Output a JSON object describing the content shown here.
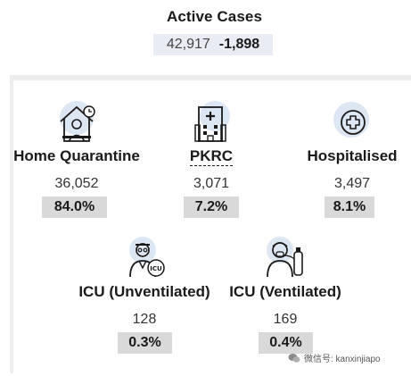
{
  "header": {
    "title": "Active Cases",
    "total": "42,917",
    "change": "-1,898"
  },
  "cards": {
    "home": {
      "label": "Home Quarantine",
      "value": "36,052",
      "pct": "84.0%"
    },
    "pkrc": {
      "label": "PKRC",
      "value": "3,071",
      "pct": "7.2%"
    },
    "hospital": {
      "label": "Hospitalised",
      "value": "3,497",
      "pct": "8.1%"
    },
    "icu_unvent": {
      "label": "ICU (Unventilated)",
      "value": "128",
      "pct": "0.3%"
    },
    "icu_vent": {
      "label": "ICU (Ventilated)",
      "value": "169",
      "pct": "0.4%"
    }
  },
  "icons": {
    "home": "home-quarantine-icon",
    "pkrc": "pkrc-building-icon",
    "hospital": "hospital-cross-icon",
    "icu_unvent": "doctor-icu-icon",
    "icu_vent": "ventilated-patient-icon"
  },
  "colors": {
    "icon_bg": "#dde6f3",
    "pct_bg": "#d9d9d9",
    "header_bg": "#e9ecf5"
  },
  "watermark": {
    "text": "微信号: kanxinjiapo"
  }
}
